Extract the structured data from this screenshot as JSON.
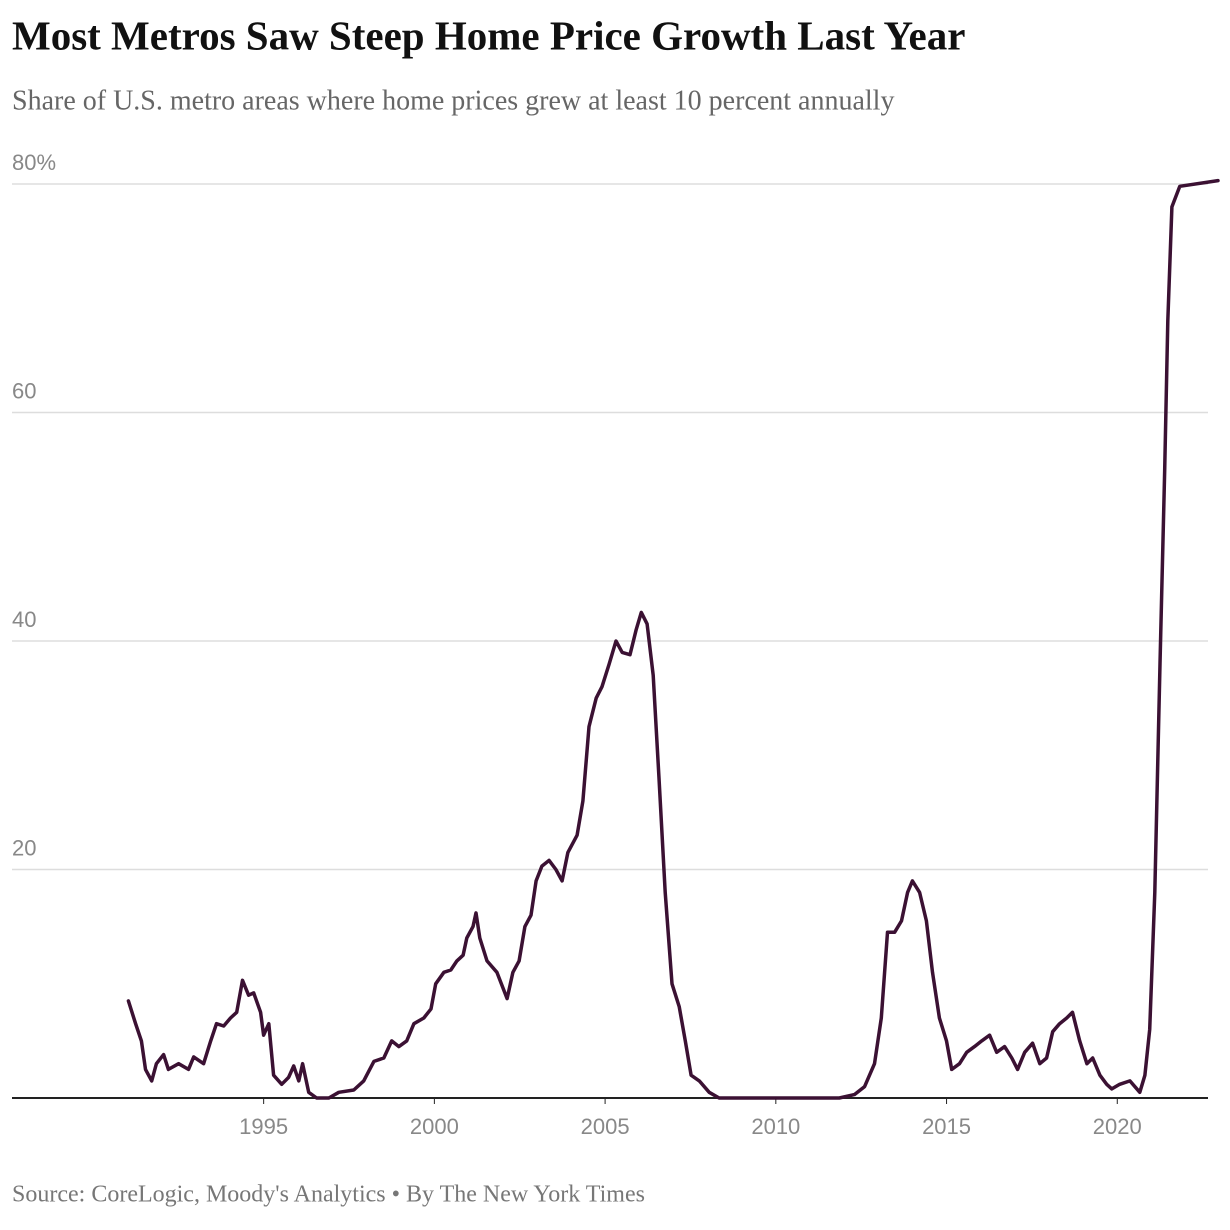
{
  "chart_data": {
    "type": "line",
    "title": "Most Metros Saw Steep Home Price Growth Last Year",
    "subtitle": "Share of U.S. metro areas where home prices grew at least 10 percent annually",
    "source": "Source: CoreLogic, Moody's Analytics • By The New York Times",
    "color": "#3b1133",
    "x": [
      1991.04,
      1991.25,
      1991.42,
      1991.54,
      1991.72,
      1991.86,
      1992.07,
      1992.21,
      1992.51,
      1992.8,
      1992.95,
      1993.24,
      1993.45,
      1993.62,
      1993.83,
      1994.03,
      1994.21,
      1994.38,
      1994.56,
      1994.71,
      1994.91,
      1995.0,
      1995.15,
      1995.29,
      1995.53,
      1995.73,
      1995.88,
      1996.03,
      1996.14,
      1996.32,
      1996.55,
      1996.91,
      1997.2,
      1997.64,
      1997.93,
      1998.23,
      1998.52,
      1998.75,
      1998.96,
      1999.19,
      1999.4,
      1999.69,
      1999.9,
      2000.04,
      2000.28,
      2000.48,
      2000.66,
      2000.84,
      2000.95,
      2001.13,
      2001.22,
      2001.33,
      2001.54,
      2001.83,
      2002.13,
      2002.3,
      2002.48,
      2002.65,
      2002.83,
      2002.98,
      2003.15,
      2003.36,
      2003.56,
      2003.74,
      2003.91,
      2004.18,
      2004.35,
      2004.53,
      2004.74,
      2004.91,
      2005.12,
      2005.32,
      2005.5,
      2005.73,
      2005.91,
      2006.06,
      2006.23,
      2006.41,
      2006.58,
      2006.76,
      2006.96,
      2007.17,
      2007.35,
      2007.52,
      2007.76,
      2008.05,
      2008.34,
      2008.93,
      2010.69,
      2011.86,
      2012.3,
      2012.6,
      2012.89,
      2013.09,
      2013.27,
      2013.48,
      2013.68,
      2013.86,
      2014.0,
      2014.21,
      2014.41,
      2014.59,
      2014.79,
      2015.0,
      2015.15,
      2015.38,
      2015.59,
      2015.82,
      2016.03,
      2016.26,
      2016.47,
      2016.7,
      2016.91,
      2017.08,
      2017.29,
      2017.52,
      2017.73,
      2017.93,
      2018.11,
      2018.31,
      2018.52,
      2018.69,
      2018.9,
      2019.11,
      2019.28,
      2019.49,
      2019.69,
      2019.84,
      2020.07,
      2020.37,
      2020.66,
      2020.81,
      2020.95,
      2021.1,
      2021.25,
      2021.39,
      2021.48,
      2021.6,
      2021.83,
      2022.95
    ],
    "values": [
      8.5,
      6.5,
      5,
      2.5,
      1.5,
      3,
      3.8,
      2.5,
      3,
      2.5,
      3.6,
      3,
      5,
      6.5,
      6.3,
      7,
      7.5,
      10.3,
      9,
      9.2,
      7.5,
      5.5,
      6.5,
      2,
      1.2,
      1.8,
      2.8,
      1.5,
      3,
      0.5,
      0,
      0,
      0.5,
      0.7,
      1.5,
      3.2,
      3.5,
      5,
      4.5,
      5,
      6.5,
      7,
      7.8,
      10,
      11,
      11.2,
      12,
      12.5,
      14,
      15,
      16.2,
      14,
      12,
      11,
      8.7,
      11,
      12,
      15,
      16,
      19,
      20.3,
      20.8,
      20,
      19,
      21.5,
      23,
      26,
      32.5,
      35,
      36,
      38,
      40,
      39,
      38.8,
      41,
      42.5,
      41.5,
      37,
      28,
      18,
      10,
      8,
      5,
      2,
      1.5,
      0.5,
      0,
      0,
      0,
      0,
      0.3,
      1,
      3,
      7,
      14.5,
      14.5,
      15.5,
      18,
      19,
      18,
      15.5,
      11,
      7,
      5,
      2.5,
      3,
      4,
      4.5,
      5,
      5.5,
      4,
      4.5,
      3.5,
      2.5,
      4,
      4.8,
      3,
      3.5,
      5.8,
      6.5,
      7,
      7.5,
      5,
      3,
      3.5,
      2,
      1.2,
      0.8,
      1.2,
      1.5,
      0.5,
      2,
      6,
      18,
      38,
      55,
      68,
      78,
      79.8,
      80.3
    ],
    "xlim": [
      1987.63,
      2022.95
    ],
    "xticks": [
      1995,
      2000,
      2005,
      2010,
      2015,
      2020
    ],
    "ylim": [
      0,
      80
    ],
    "yticks": [
      20,
      40,
      60,
      {
        "value": 80,
        "label": "80%"
      }
    ],
    "grid": true
  }
}
